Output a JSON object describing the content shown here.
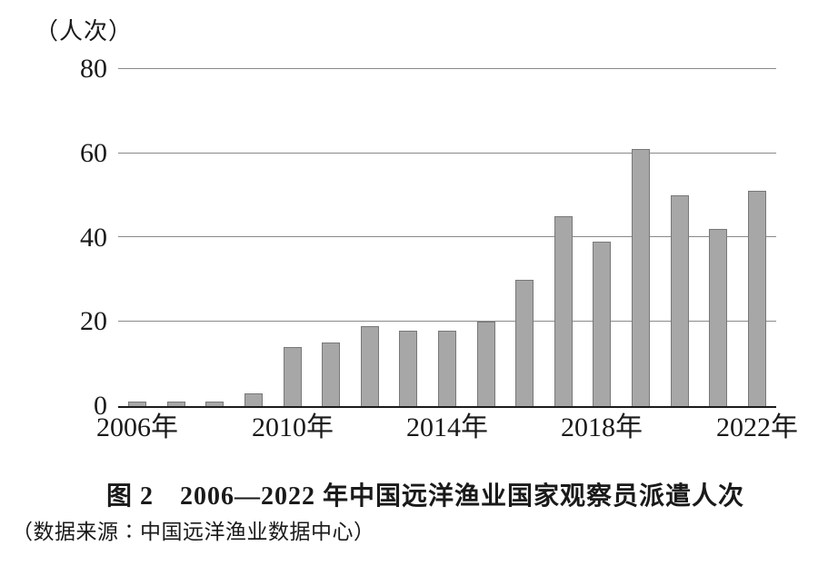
{
  "figure": {
    "unit_label": "（人次）",
    "title": "图 2　2006—2022 年中国远洋渔业国家观察员派遣人次",
    "source": "（数据来源∶中国远洋渔业数据中心）"
  },
  "chart_data": {
    "type": "bar",
    "title": "图 2　2006—2022 年中国远洋渔业国家观察员派遣人次",
    "ylabel": "（人次）",
    "categories": [
      "2006",
      "2007",
      "2008",
      "2009",
      "2010",
      "2011",
      "2012",
      "2013",
      "2014",
      "2015",
      "2016",
      "2017",
      "2018",
      "2019",
      "2020",
      "2021",
      "2022"
    ],
    "values": [
      1,
      1,
      1,
      3,
      14,
      15,
      19,
      18,
      18,
      20,
      30,
      45,
      39,
      61,
      50,
      42,
      51
    ],
    "ylim": [
      0,
      80
    ],
    "y_ticks": [
      0,
      20,
      40,
      60,
      80
    ],
    "x_tick_labels": [
      "2006年",
      "2010年",
      "2014年",
      "2018年",
      "2022年"
    ],
    "x_tick_positions": [
      0,
      4,
      8,
      12,
      16
    ],
    "grid": "horizontal",
    "legend": "none",
    "bar_fill_color": "#a7a7a7",
    "bar_border_color": "#787878",
    "gridline_color": "#8a8a8a",
    "axis_color": "#1c1c1c"
  }
}
